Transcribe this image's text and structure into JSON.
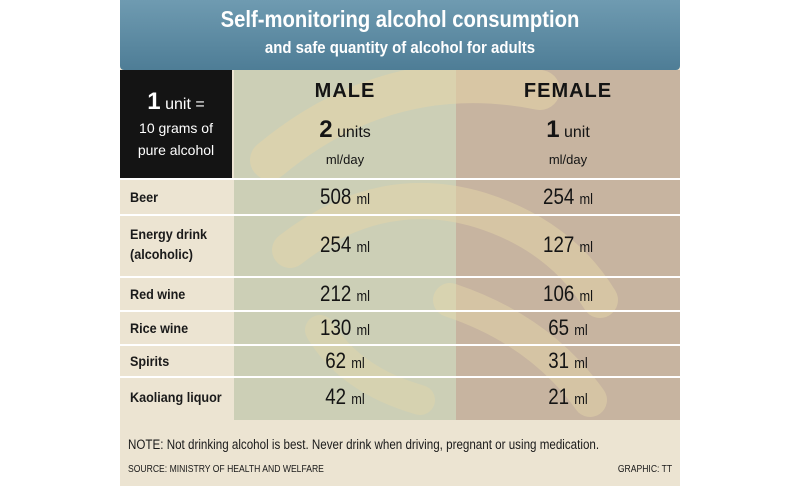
{
  "header": {
    "title": "Self-monitoring alcohol consumption",
    "subtitle": "and safe quantity of alcohol for adults"
  },
  "unit_box": {
    "number": "1",
    "unit_word": "unit =",
    "line2": "10 grams of",
    "line3": "pure alcohol"
  },
  "columns": {
    "male": {
      "label": "MALE",
      "units_number": "2",
      "units_word": "units",
      "per": "ml/day"
    },
    "female": {
      "label": "FEMALE",
      "units_number": "1",
      "units_word": "unit",
      "per": "ml/day"
    }
  },
  "rows": [
    {
      "name_line1": "Beer",
      "name_line2": "",
      "male_num": "508",
      "female_num": "254",
      "unit": "ml"
    },
    {
      "name_line1": "Energy drink",
      "name_line2": "(alcoholic)",
      "male_num": "254",
      "female_num": "127",
      "unit": "ml"
    },
    {
      "name_line1": "Red wine",
      "name_line2": "",
      "male_num": "212",
      "female_num": "106",
      "unit": "ml"
    },
    {
      "name_line1": "Rice wine",
      "name_line2": "",
      "male_num": "130",
      "female_num": "65",
      "unit": "ml"
    },
    {
      "name_line1": "Spirits",
      "name_line2": "",
      "male_num": "62",
      "female_num": "31",
      "unit": "ml"
    },
    {
      "name_line1": "Kaoliang liquor",
      "name_line2": "",
      "male_num": "42",
      "female_num": "21",
      "unit": "ml"
    }
  ],
  "footer": {
    "note": "NOTE: Not drinking alcohol is best. Never drink when driving, pregnant or using medication.",
    "source": "SOURCE:  MINISTRY OF HEALTH AND WELFARE",
    "credit": "GRAPHIC: TT"
  },
  "colors": {
    "header": "#5a89a2",
    "male_column": "#cccfb6",
    "female_column": "#c7b4a0",
    "background": "#ece4d2",
    "unit_box": "#141414"
  },
  "chart_data": {
    "type": "table",
    "title": "Self-monitoring alcohol consumption",
    "subtitle": "and safe quantity of alcohol for adults",
    "columns": [
      "MALE",
      "FEMALE"
    ],
    "categories": [
      "Beer",
      "Energy drink (alcoholic)",
      "Red wine",
      "Rice wine",
      "Spirits",
      "Kaoliang liquor"
    ],
    "series": [
      {
        "name": "MALE",
        "values": [
          508,
          254,
          212,
          130,
          62,
          42
        ]
      },
      {
        "name": "FEMALE",
        "values": [
          254,
          127,
          106,
          65,
          31,
          21
        ]
      }
    ],
    "unit": "ml"
  }
}
